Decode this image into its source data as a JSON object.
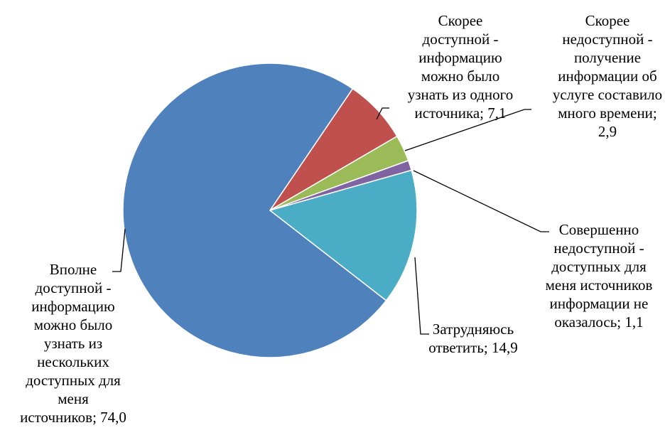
{
  "chart_data": {
    "type": "pie",
    "title": "",
    "categories": [
      "Вполне доступной - информацию можно было узнать из нескольких доступных для меня источников",
      "Скорее доступной - информацию можно было узнать из одного источника",
      "Скорее недоступной - получение информации об услуге составило много времени",
      "Совершенно недоступной - доступных для меня источников информации не оказалось",
      "Затрудняюсь ответить"
    ],
    "values": [
      74.0,
      7.1,
      2.9,
      1.1,
      14.9
    ],
    "colors": [
      "#4F81BD",
      "#C0504D",
      "#9BBB59",
      "#8064A2",
      "#4BACC6"
    ],
    "data_labels": [
      [
        "Вполне",
        "доступной -",
        "информацию",
        "можно было",
        "узнать из",
        "нескольких",
        "доступных для",
        "меня",
        "источников; 74,0"
      ],
      [
        "Скорее",
        "доступной -",
        "информацию",
        "можно было",
        "узнать из одного",
        "источника; 7,1"
      ],
      [
        "Скорее",
        "недоступной -",
        "получение",
        "информации об",
        "услуге составило",
        "много времени;",
        "2,9"
      ],
      [
        "Совершенно",
        "недоступной -",
        "доступных для",
        "меня источников",
        "информации не",
        "оказалось; 1,1"
      ],
      [
        "Затрудняюсь",
        "ответить; 14,9"
      ]
    ],
    "legend": "none"
  }
}
